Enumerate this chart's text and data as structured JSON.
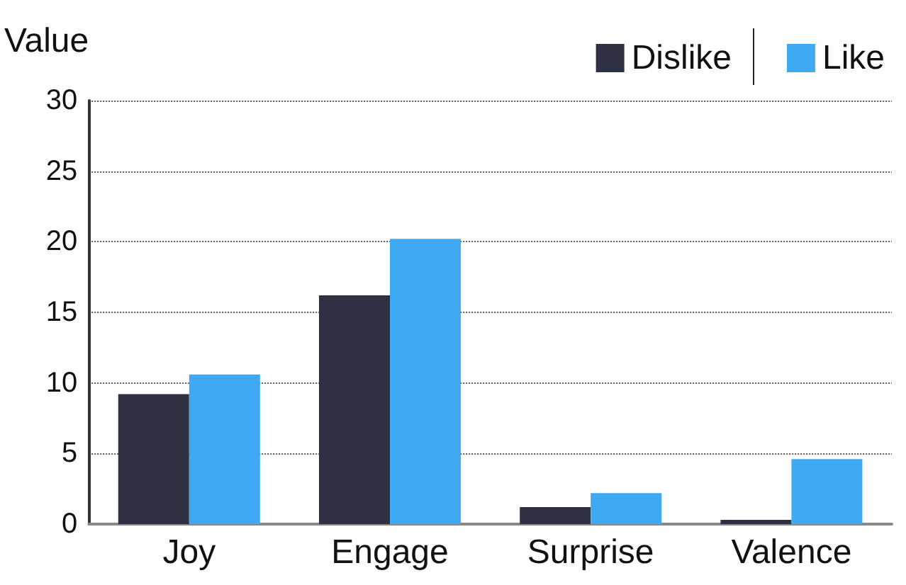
{
  "chart_data": {
    "type": "bar",
    "ylabel": "Value",
    "categories": [
      "Joy",
      "Engage",
      "Surprise",
      "Valence"
    ],
    "series": [
      {
        "name": "Dislike",
        "color": "#2f3142",
        "values": [
          9.2,
          16.2,
          1.2,
          0.3
        ]
      },
      {
        "name": "Like",
        "color": "#40a9f3",
        "values": [
          10.6,
          20.2,
          2.2,
          4.6
        ]
      }
    ],
    "ylim": [
      0,
      30
    ],
    "yticks": [
      0,
      5,
      10,
      15,
      20,
      25,
      30
    ],
    "grid": "y",
    "legend": "top right"
  }
}
